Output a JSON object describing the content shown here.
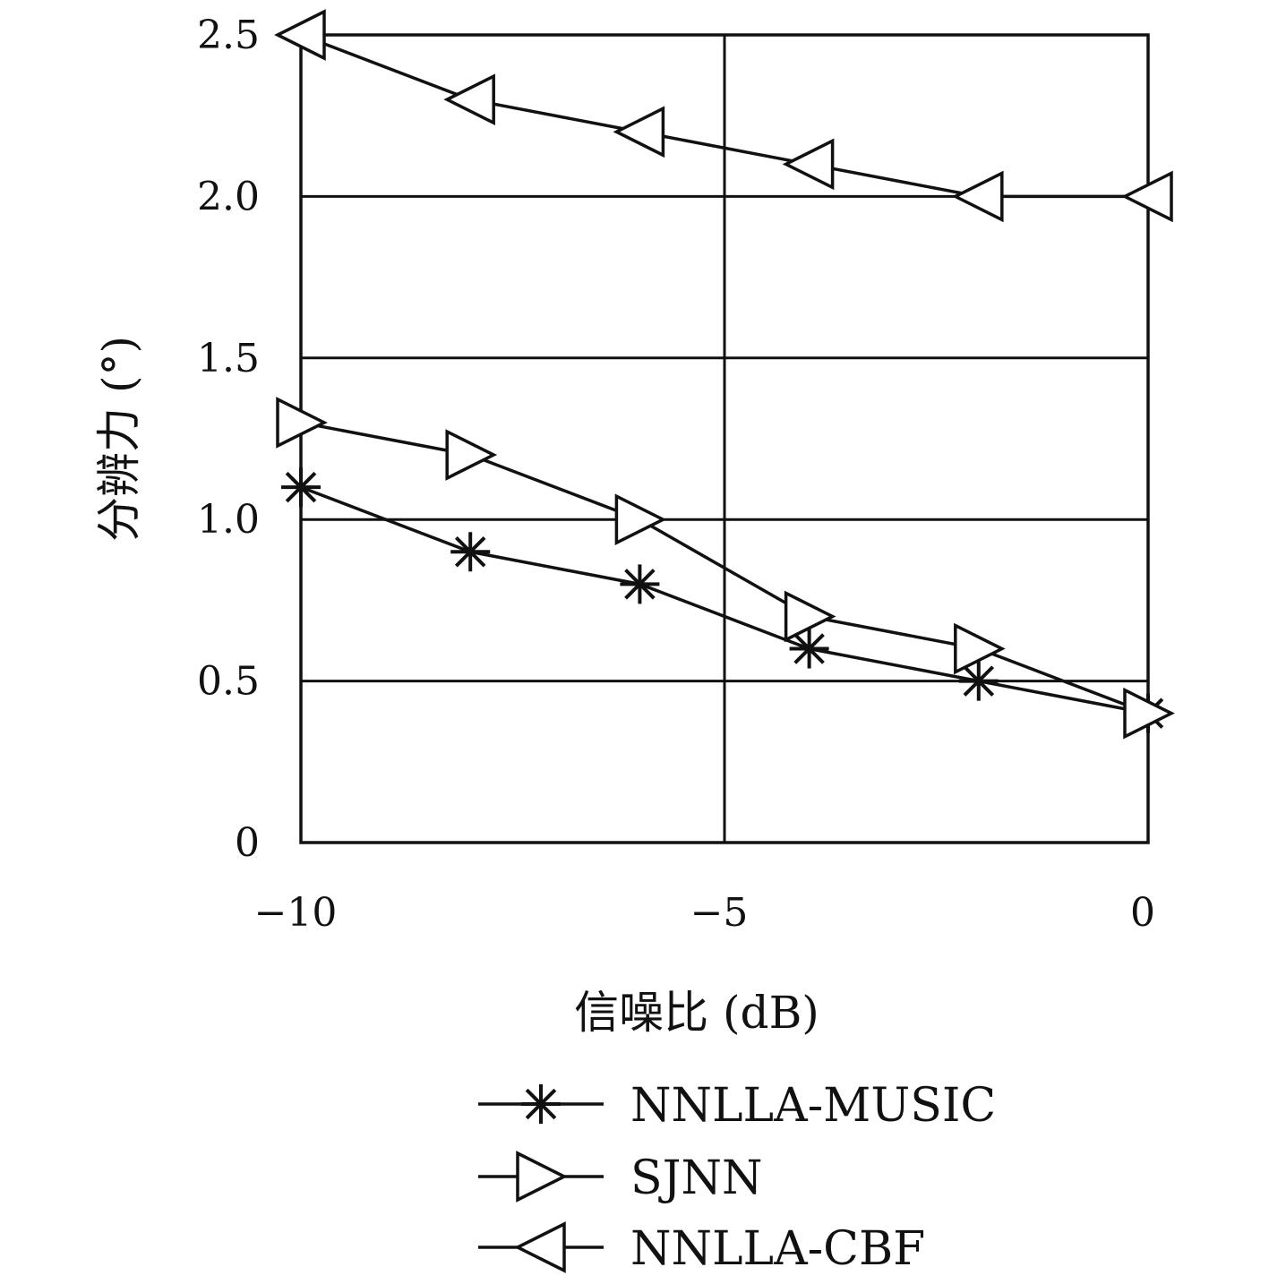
{
  "chart_data": {
    "type": "line",
    "xlabel": "信噪比 (dB)",
    "ylabel": "分辨力 (°)",
    "xlim": [
      -10,
      0
    ],
    "ylim": [
      0,
      2.5
    ],
    "x_ticks": [
      -10,
      -5,
      0
    ],
    "x_tick_labels": [
      "−10",
      "−5",
      "0"
    ],
    "y_ticks": [
      0,
      0.5,
      1.0,
      1.5,
      2.0,
      2.5
    ],
    "y_tick_labels": [
      "0",
      "0.5",
      "1.0",
      "1.5",
      "2.0",
      "2.5"
    ],
    "grid": true,
    "legend_position": "bottom",
    "x": [
      -10,
      -8,
      -6,
      -4,
      -2,
      0
    ],
    "series": [
      {
        "name": "NNLLA-MUSIC",
        "marker": "star",
        "values": [
          1.1,
          0.9,
          0.8,
          0.6,
          0.5,
          0.4
        ]
      },
      {
        "name": "SJNN",
        "marker": "triangle-right",
        "values": [
          1.3,
          1.2,
          1.0,
          0.7,
          0.6,
          0.4
        ]
      },
      {
        "name": "NNLLA-CBF",
        "marker": "triangle-left",
        "values": [
          2.5,
          2.3,
          2.2,
          2.1,
          2.0,
          2.0
        ]
      }
    ]
  }
}
